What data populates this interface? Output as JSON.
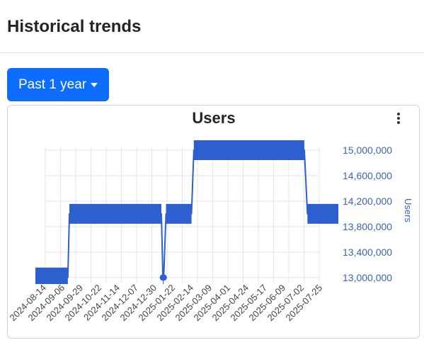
{
  "page": {
    "title": "Historical trends"
  },
  "range_selector": {
    "label": "Past 1 year",
    "caret_icon": "caret-down-icon"
  },
  "chart_menu": {
    "icon": "vertical-ellipsis-icon"
  },
  "colors": {
    "primary": "#0d6efd",
    "series": "#2e5fcf",
    "axis_label": "#3b63b8",
    "grid": "#e5e5e5"
  },
  "chart_data": {
    "type": "line",
    "title": "Users",
    "xlabel": "",
    "ylabel": "Users",
    "y_axis_side": "right",
    "ylim": [
      12920000,
      15200000
    ],
    "yticks": [
      13000000,
      13400000,
      13800000,
      14200000,
      14600000,
      15000000
    ],
    "ytick_labels": [
      "13,000,000",
      "13,400,000",
      "13,800,000",
      "14,200,000",
      "14,600,000",
      "15,000,000"
    ],
    "xlim": [
      "2024-07-20",
      "2025-08-16"
    ],
    "xtick_labels": [
      "2024-08-14",
      "2024-09-06",
      "2024-09-29",
      "2024-10-22",
      "2024-11-14",
      "2024-12-07",
      "2024-12-30",
      "2025-01-22",
      "2025-02-14",
      "2025-03-09",
      "2025-04-01",
      "2025-04-24",
      "2025-05-17",
      "2025-06-09",
      "2025-07-02",
      "2025-07-25"
    ],
    "grid": true,
    "legend": "none",
    "series": [
      {
        "x": [
          "2024-07-20",
          "2024-08-31",
          "2024-09-02",
          "2024-12-30",
          "2025-01-01",
          "2025-01-02",
          "2025-01-05",
          "2025-02-07",
          "2025-02-10",
          "2025-07-03",
          "2025-07-07",
          "2025-08-16"
        ],
        "y": [
          13000000,
          13000000,
          14000000,
          14000000,
          13000000,
          13000000,
          14000000,
          14000000,
          15000000,
          15000000,
          14000000,
          14000000
        ]
      }
    ]
  }
}
